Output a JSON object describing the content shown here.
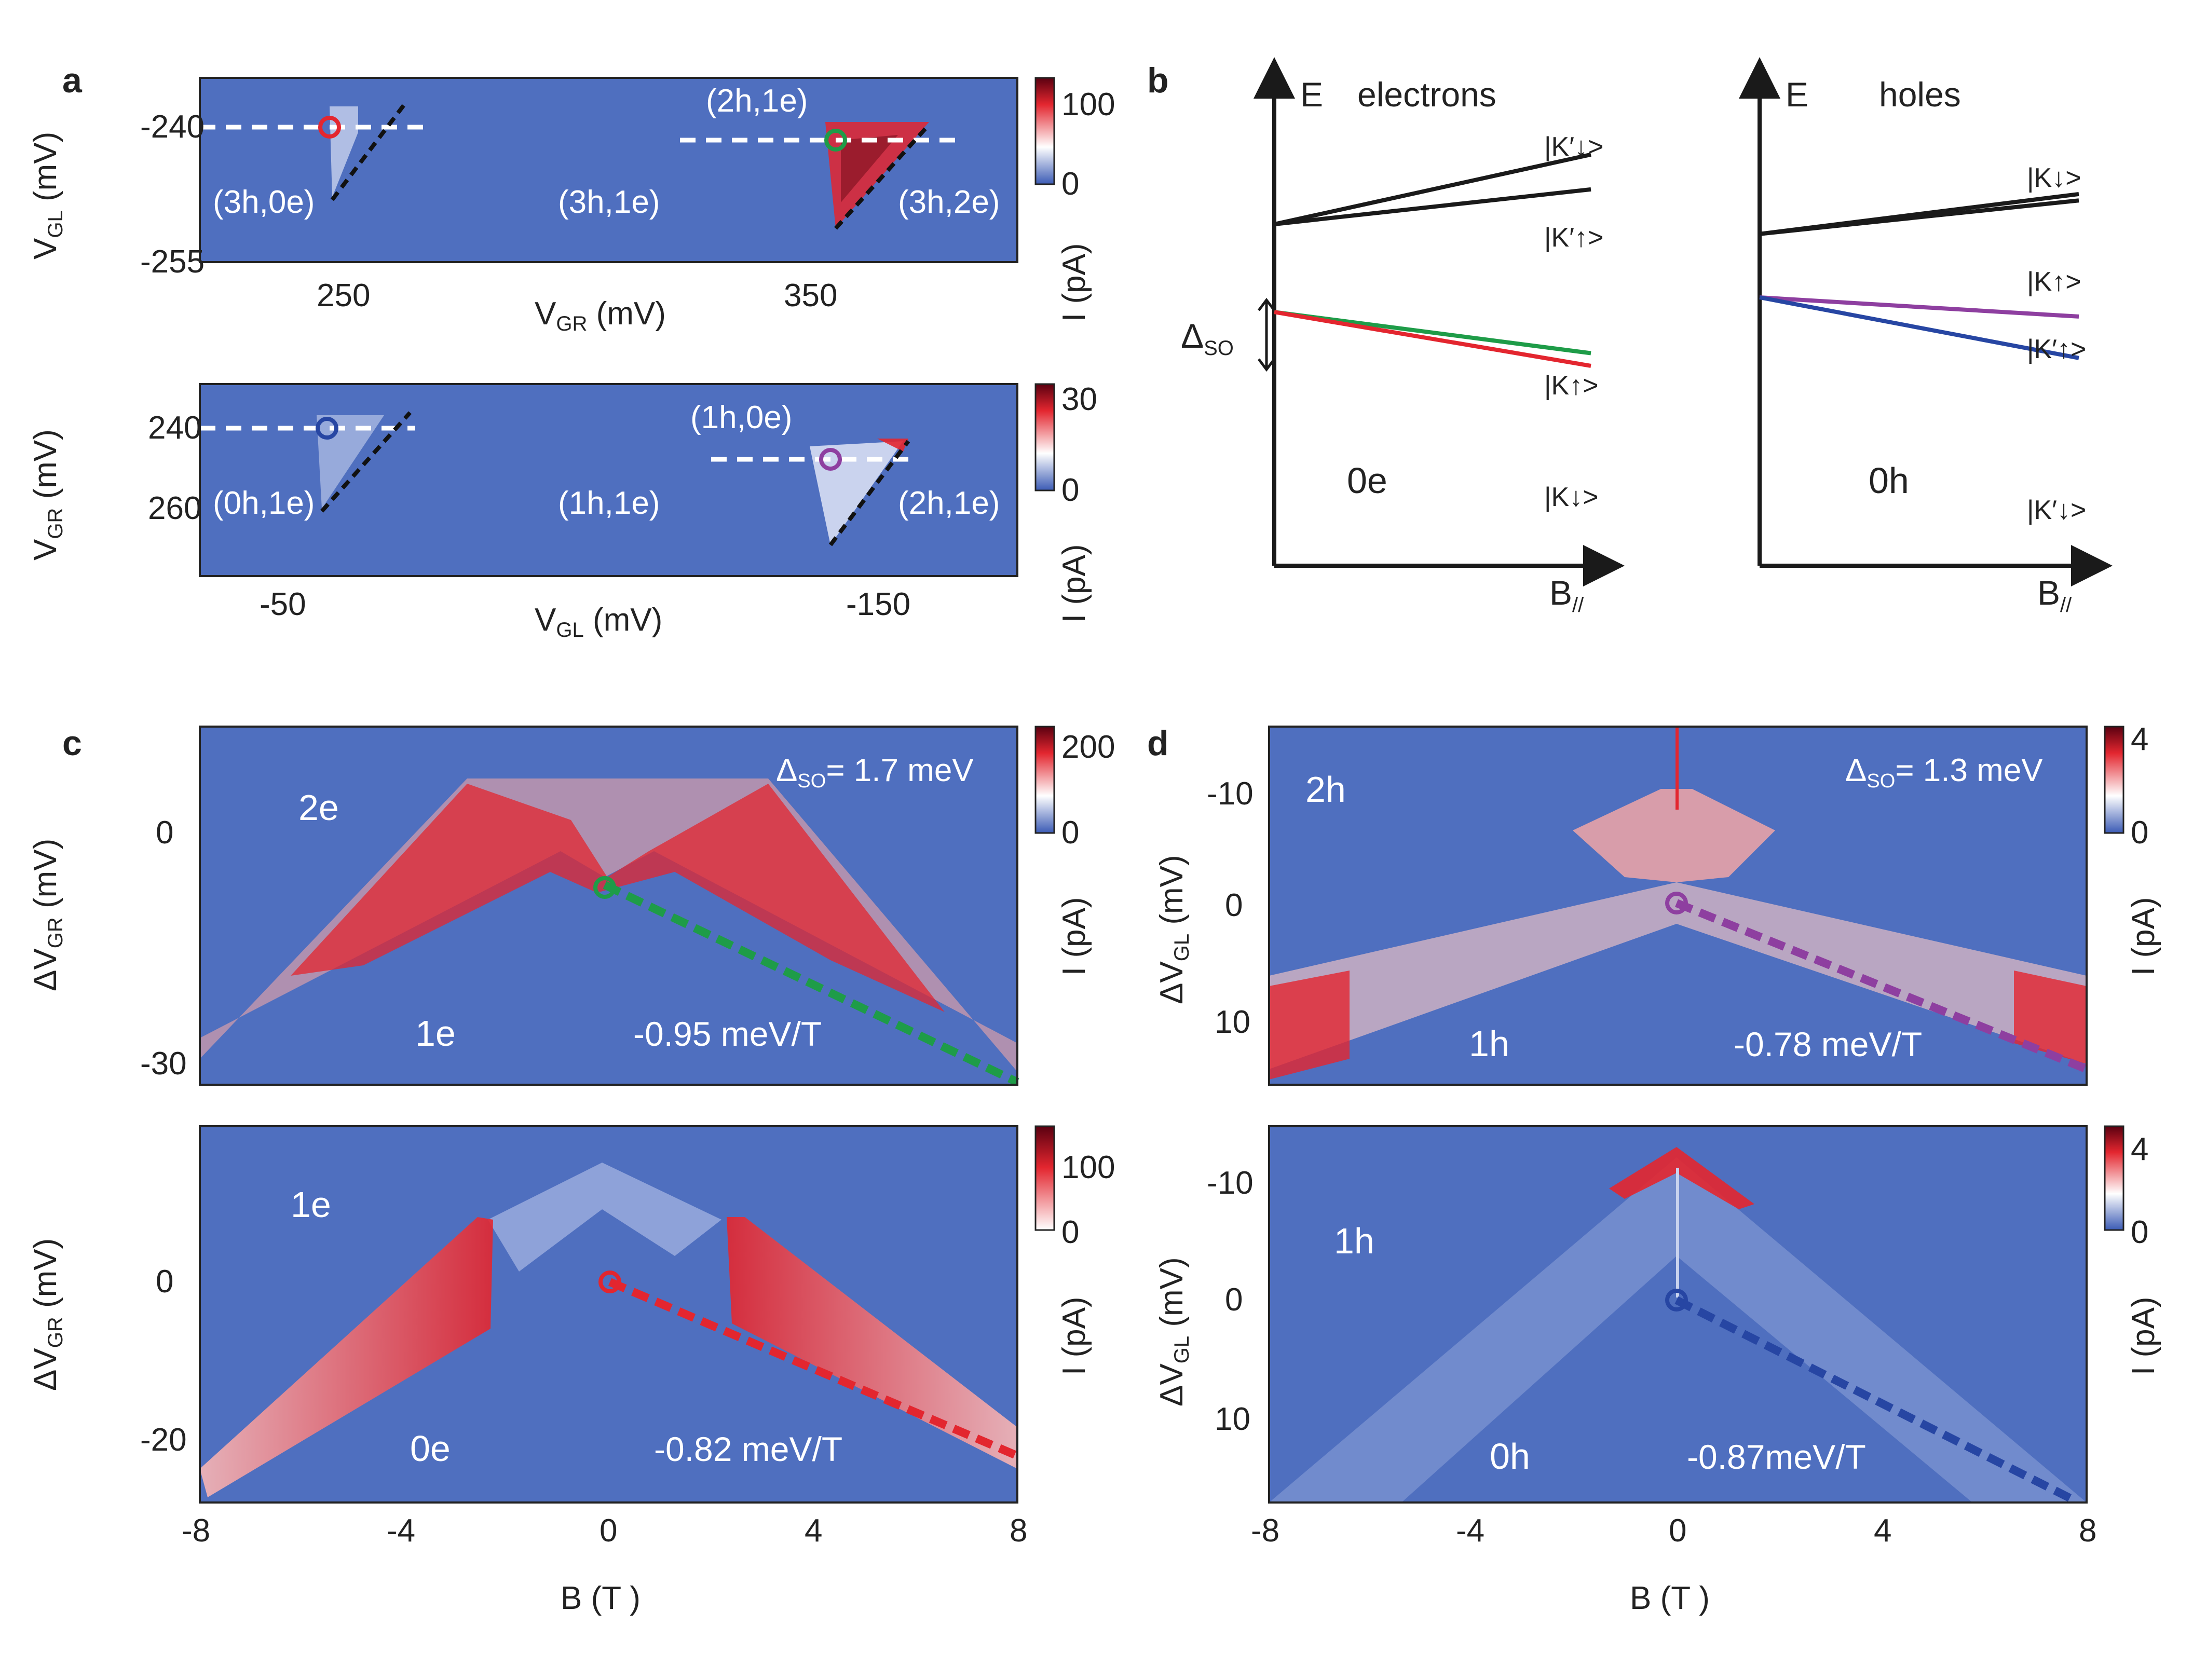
{
  "panel_labels": {
    "a": "a",
    "b": "b",
    "c": "c",
    "d": "d"
  },
  "chart_data": [
    {
      "id": "a-top",
      "type": "heatmap",
      "xlabel": "V",
      "xlabel_sub": "GR",
      "xunit": "(mV)",
      "ylabel": "V",
      "ylabel_sub": "GL",
      "yunit": "(mV)",
      "xticks": [
        "250",
        "350"
      ],
      "yticks": [
        "-240",
        "-255"
      ],
      "colorbar": {
        "label": "I (pA)",
        "ticks": [
          "0",
          "100"
        ],
        "range": [
          0,
          130
        ]
      },
      "region_labels": [
        "(3h,0e)",
        "(3h,1e)",
        "(2h,1e)",
        "(3h,2e)"
      ],
      "markers": [
        {
          "color": "#e3262f",
          "label": "red circle"
        },
        {
          "color": "#1e9c48",
          "label": "green circle"
        }
      ]
    },
    {
      "id": "a-bottom",
      "type": "heatmap",
      "xlabel": "V",
      "xlabel_sub": "GL",
      "xunit": "(mV)",
      "ylabel": "V",
      "ylabel_sub": "GR",
      "yunit": "(mV)",
      "xticks": [
        "-50",
        "-150"
      ],
      "yticks": [
        "240",
        "260"
      ],
      "colorbar": {
        "label": "I (pA)",
        "ticks": [
          "0",
          "30"
        ],
        "range": [
          0,
          35
        ]
      },
      "region_labels": [
        "(0h,1e)",
        "(1h,1e)",
        "(1h,0e)",
        "(2h,1e)"
      ],
      "markers": [
        {
          "color": "#2746a3",
          "label": "blue circle"
        },
        {
          "color": "#8e3fa0",
          "label": "purple circle"
        }
      ]
    },
    {
      "id": "b-electrons",
      "type": "line",
      "title": "electrons",
      "ylabel": "E",
      "xlabel": "B",
      "xlabel_sub": "//",
      "delta_label": "Δ",
      "delta_sub": "SO",
      "ground": "0e",
      "series": [
        {
          "name": "|K′↓>",
          "color": "#1a1a1a",
          "start": 0.7,
          "slope": 0.44
        },
        {
          "name": "|K′↑>",
          "color": "#1a1a1a",
          "start": 0.7,
          "slope": 0.22
        },
        {
          "name": "|K↑>",
          "color": "#1e9c48",
          "start": 0.52,
          "slope": -0.26
        },
        {
          "name": "|K↓>",
          "color": "#e3262f",
          "start": 0.52,
          "slope": -0.34
        }
      ]
    },
    {
      "id": "b-holes",
      "type": "line",
      "title": "holes",
      "ylabel": "E",
      "xlabel": "B",
      "xlabel_sub": "//",
      "ground": "0h",
      "series": [
        {
          "name": "|K↓>",
          "color": "#1a1a1a",
          "start": 0.68,
          "slope": 0.25
        },
        {
          "name": "|K↑>",
          "color": "#1a1a1a",
          "start": 0.68,
          "slope": 0.21
        },
        {
          "name": "|K′↑>",
          "color": "#8e3fa0",
          "start": 0.55,
          "slope": -0.12
        },
        {
          "name": "|K′↓>",
          "color": "#2746a3",
          "start": 0.55,
          "slope": -0.38
        }
      ]
    },
    {
      "id": "c-top",
      "type": "heatmap",
      "ylabel": "ΔV",
      "ylabel_sub": "GR",
      "yunit": "(mV)",
      "yticks": [
        "0",
        "-30"
      ],
      "xlim": [
        -8,
        8
      ],
      "colorbar": {
        "label": "I (pA)",
        "ticks": [
          "0",
          "200"
        ],
        "range": [
          0,
          230
        ]
      },
      "annotation": "= 1.7 meV",
      "annotation_symbol": "Δ",
      "annotation_sub": "SO",
      "region_labels": [
        "2e",
        "1e"
      ],
      "slope_label": "-0.95 meV/T",
      "slope": -0.95,
      "line_color": "#1e9c48"
    },
    {
      "id": "c-bottom",
      "type": "heatmap",
      "ylabel": "ΔV",
      "ylabel_sub": "GR",
      "yunit": "(mV)",
      "yticks": [
        "0",
        "-20"
      ],
      "xlim": [
        -8,
        8
      ],
      "xticks": [
        "-8",
        "-4",
        "0",
        "4",
        "8"
      ],
      "xlabel": "B (T )",
      "colorbar": {
        "label": "I (pA)",
        "ticks": [
          "0",
          "100"
        ],
        "range": [
          0,
          150
        ]
      },
      "region_labels": [
        "1e",
        "0e"
      ],
      "slope_label": "-0.82 meV/T",
      "slope": -0.82,
      "line_color": "#e3262f"
    },
    {
      "id": "d-top",
      "type": "heatmap",
      "ylabel": "ΔV",
      "ylabel_sub": "GL",
      "yunit": "(mV)",
      "yticks": [
        "-10",
        "0",
        "10"
      ],
      "xlim": [
        -8,
        8
      ],
      "colorbar": {
        "label": "I (pA)",
        "ticks": [
          "0",
          "4"
        ],
        "range": [
          0,
          4
        ]
      },
      "annotation": "= 1.3 meV",
      "annotation_symbol": "Δ",
      "annotation_sub": "SO",
      "region_labels": [
        "2h",
        "1h"
      ],
      "slope_label": "-0.78 meV/T",
      "slope": -0.78,
      "line_color": "#8e3fa0"
    },
    {
      "id": "d-bottom",
      "type": "heatmap",
      "ylabel": "ΔV",
      "ylabel_sub": "GL",
      "yunit": "(mV)",
      "yticks": [
        "-10",
        "0",
        "10"
      ],
      "xlim": [
        -8,
        8
      ],
      "xticks": [
        "-8",
        "-4",
        "0",
        "4",
        "8"
      ],
      "xlabel": "B (T )",
      "colorbar": {
        "label": "I (pA)",
        "ticks": [
          "0",
          "4"
        ],
        "range": [
          0,
          5
        ]
      },
      "region_labels": [
        "1h",
        "0h"
      ],
      "slope_label": "-0.87meV/T",
      "slope": -0.87,
      "line_color": "#2746a3"
    }
  ]
}
